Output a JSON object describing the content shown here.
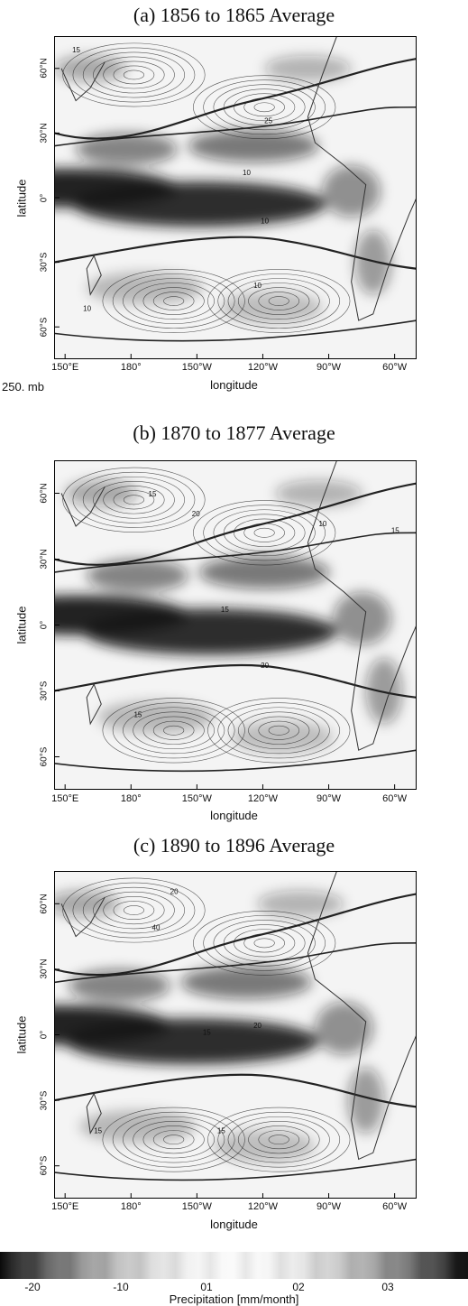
{
  "level_label": "250. mb",
  "colorbar": {
    "ticks": [
      "-20",
      "-10",
      "01",
      "02",
      "03"
    ],
    "label": "Precipitation [mm/month]"
  },
  "chart_data": [
    {
      "type": "heatmap",
      "title": "(a) 1856 to 1865 Average",
      "xlabel": "longitude",
      "ylabel": "latitude",
      "xticks": [
        "150°E",
        "180°",
        "150°W",
        "120°W",
        "90°W",
        "60°W"
      ],
      "yticks": [
        "60°N",
        "30°N",
        "0°",
        "30°S",
        "60°S"
      ],
      "xlim": [
        145,
        310
      ],
      "ylim": [
        -75,
        75
      ],
      "contour_labels": [
        "15",
        "25",
        "10",
        "10",
        "10",
        "10"
      ],
      "colors": {
        "dry": "#f4f4f4",
        "wet": "#141414",
        "contour": "#222222"
      }
    },
    {
      "type": "heatmap",
      "title": "(b) 1870 to 1877 Average",
      "xlabel": "longitude",
      "ylabel": "latitude",
      "xticks": [
        "150°E",
        "180°",
        "150°W",
        "120°W",
        "90°W",
        "60°W"
      ],
      "yticks": [
        "60°N",
        "30°N",
        "0°",
        "30°S",
        "60°S"
      ],
      "xlim": [
        145,
        310
      ],
      "ylim": [
        -75,
        75
      ],
      "contour_labels": [
        "15",
        "20",
        "15",
        "10",
        "20",
        "15",
        "15"
      ],
      "colors": {
        "dry": "#f4f4f4",
        "wet": "#141414",
        "contour": "#222222"
      }
    },
    {
      "type": "heatmap",
      "title": "(c) 1890 to 1896 Average",
      "xlabel": "longitude",
      "ylabel": "latitude",
      "xticks": [
        "150°E",
        "180°",
        "150°W",
        "120°W",
        "90°W",
        "60°W"
      ],
      "yticks": [
        "60°N",
        "30°N",
        "0°",
        "30°S",
        "60°S"
      ],
      "xlim": [
        145,
        310
      ],
      "ylim": [
        -75,
        75
      ],
      "contour_labels": [
        "40",
        "20",
        "15",
        "20",
        "15",
        "15"
      ],
      "colors": {
        "dry": "#f4f4f4",
        "wet": "#141414",
        "contour": "#222222"
      }
    }
  ]
}
